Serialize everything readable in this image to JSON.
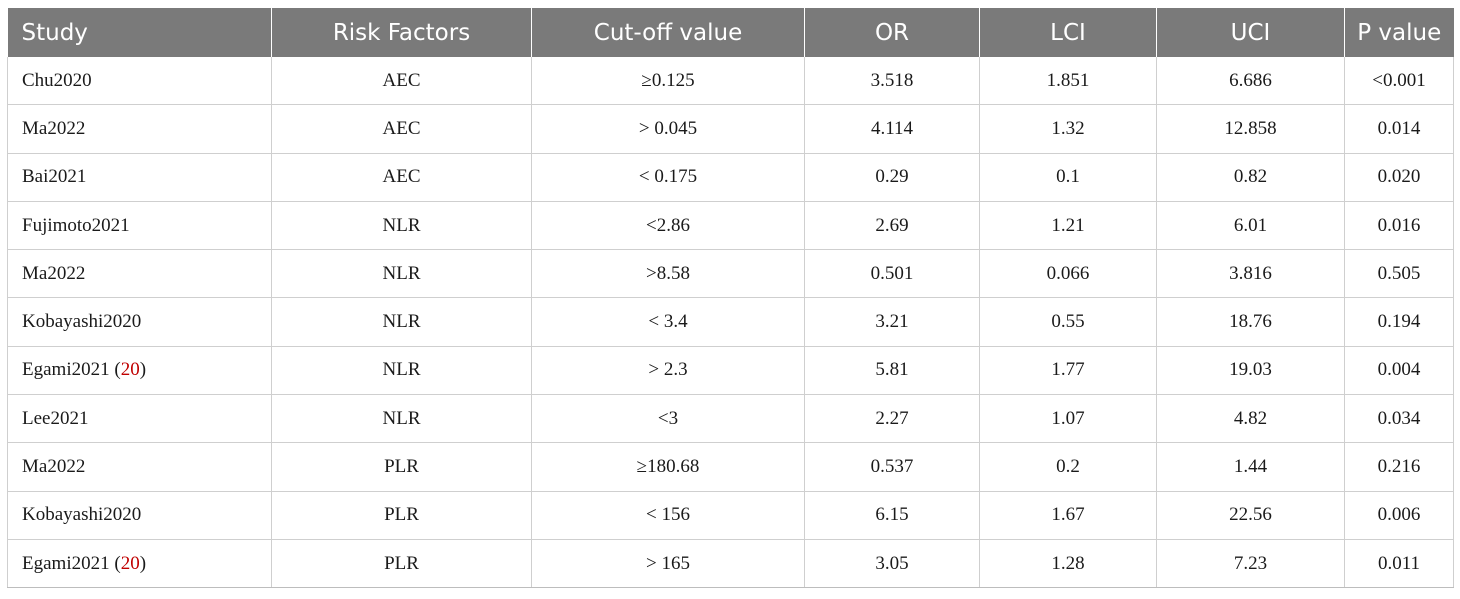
{
  "table": {
    "headers": [
      "Study",
      "Risk Factors",
      "Cut-off value",
      "OR",
      "LCI",
      "UCI",
      "P value"
    ],
    "rows": [
      {
        "study": "Chu2020",
        "ref": "",
        "risk": "AEC",
        "cutoff": "≥0.125",
        "or": "3.518",
        "lci": "1.851",
        "uci": "6.686",
        "p": "<0.001"
      },
      {
        "study": "Ma2022",
        "ref": "",
        "risk": "AEC",
        "cutoff": "> 0.045",
        "or": "4.114",
        "lci": "1.32",
        "uci": "12.858",
        "p": "0.014"
      },
      {
        "study": "Bai2021",
        "ref": "",
        "risk": "AEC",
        "cutoff": "< 0.175",
        "or": "0.29",
        "lci": "0.1",
        "uci": "0.82",
        "p": "0.020"
      },
      {
        "study": "Fujimoto2021",
        "ref": "",
        "risk": "NLR",
        "cutoff": "<2.86",
        "or": "2.69",
        "lci": "1.21",
        "uci": "6.01",
        "p": "0.016"
      },
      {
        "study": "Ma2022",
        "ref": "",
        "risk": "NLR",
        "cutoff": ">8.58",
        "or": "0.501",
        "lci": "0.066",
        "uci": "3.816",
        "p": "0.505"
      },
      {
        "study": "Kobayashi2020",
        "ref": "",
        "risk": "NLR",
        "cutoff": "< 3.4",
        "or": "3.21",
        "lci": "0.55",
        "uci": "18.76",
        "p": "0.194"
      },
      {
        "study": "Egami2021 (",
        "ref": "20",
        "risk": "NLR",
        "cutoff": "> 2.3",
        "or": "5.81",
        "lci": "1.77",
        "uci": "19.03",
        "p": "0.004"
      },
      {
        "study": "Lee2021",
        "ref": "",
        "risk": "NLR",
        "cutoff": "<3",
        "or": "2.27",
        "lci": "1.07",
        "uci": "4.82",
        "p": "0.034"
      },
      {
        "study": "Ma2022",
        "ref": "",
        "risk": "PLR",
        "cutoff": "≥180.68",
        "or": "0.537",
        "lci": "0.2",
        "uci": "1.44",
        "p": "0.216"
      },
      {
        "study": "Kobayashi2020",
        "ref": "",
        "risk": "PLR",
        "cutoff": "< 156",
        "or": "6.15",
        "lci": "1.67",
        "uci": "22.56",
        "p": "0.006"
      },
      {
        "study": "Egami2021 (",
        "ref": "20",
        "risk": "PLR",
        "cutoff": "> 165",
        "or": "3.05",
        "lci": "1.28",
        "uci": "7.23",
        "p": "0.011"
      }
    ]
  },
  "colors": {
    "header_bg": "#7a7a7a",
    "header_text": "#ffffff",
    "reference_link": "#c00000",
    "grid_line": "#cfcfcf"
  }
}
